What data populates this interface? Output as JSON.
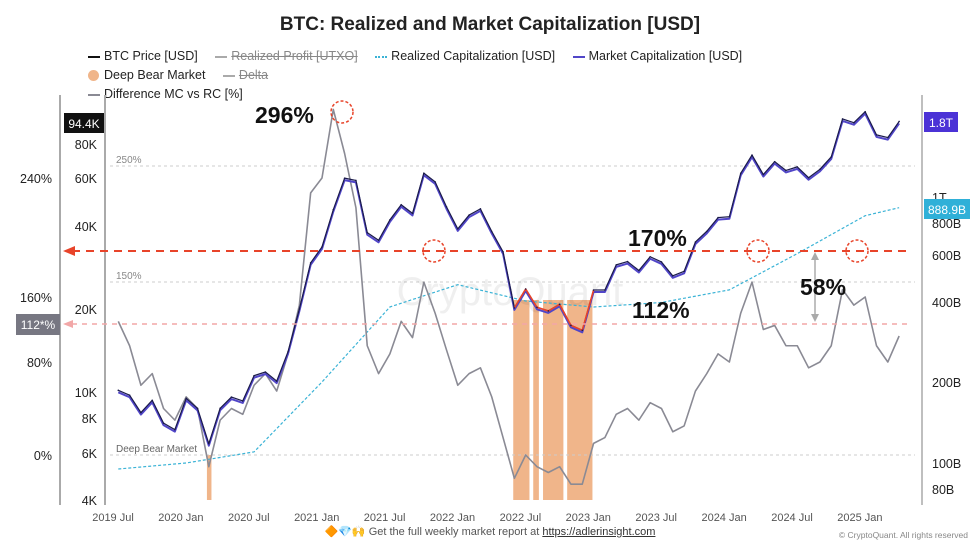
{
  "chart_data": {
    "type": "line",
    "title": "BTC: Realized and Market Capitalization [USD]",
    "legend": [
      {
        "label": "BTC Price [USD]",
        "color": "#111111",
        "style": "solid"
      },
      {
        "label": "Realized Profit [UTXO]",
        "color": "#999999",
        "style": "solid",
        "hidden": true
      },
      {
        "label": "Realized Capitalization [USD]",
        "color": "#3bb3d6",
        "style": "dotted"
      },
      {
        "label": "Market Capitalization [USD]",
        "color": "#5146c8",
        "style": "solid"
      },
      {
        "label": "Deep Bear Market",
        "color": "#f0b58a",
        "style": "dot"
      },
      {
        "label": "Delta",
        "color": "#999999",
        "style": "solid",
        "hidden": true
      },
      {
        "label": "Difference MC vs RC [%]",
        "color": "#8a8a94",
        "style": "solid"
      }
    ],
    "x_ticks": [
      "2019 Jul",
      "2020 Jan",
      "2020 Jul",
      "2021 Jan",
      "2021 Jul",
      "2022 Jan",
      "2022 Jul",
      "2023 Jan",
      "2023 Jul",
      "2024 Jan",
      "2024 Jul",
      "2025 Jan"
    ],
    "left_pct_ticks": [
      "240%",
      "160%",
      "80%",
      "0%"
    ],
    "price_ticks": [
      "80K",
      "60K",
      "40K",
      "20K",
      "10K",
      "8K",
      "6K",
      "4K"
    ],
    "right_ticks": [
      "1T",
      "800B",
      "600B",
      "400B",
      "200B",
      "100B",
      "80B"
    ],
    "price_scale": "log",
    "mcap_scale": "log",
    "price_badge": "94.4K",
    "pct_badge": "112*%",
    "mcap_badge": "1.8T",
    "rcap_badge": "888.9B",
    "ref_lines": [
      {
        "label": "250%"
      },
      {
        "label": "150%"
      },
      {
        "label": "Deep Bear Market"
      }
    ],
    "annotations": [
      "296%",
      "170%",
      "112%",
      "58%"
    ],
    "watermark": "CryptoQuant",
    "btc_price": [
      [
        "2019-07",
        10000
      ],
      [
        "2019-08",
        9600
      ],
      [
        "2019-09",
        8300
      ],
      [
        "2019-10",
        9200
      ],
      [
        "2019-11",
        7600
      ],
      [
        "2019-12",
        7200
      ],
      [
        "2020-01",
        9350
      ],
      [
        "2020-02",
        8600
      ],
      [
        "2020-03",
        6400
      ],
      [
        "2020-04",
        8600
      ],
      [
        "2020-05",
        9450
      ],
      [
        "2020-06",
        9150
      ],
      [
        "2020-07",
        11300
      ],
      [
        "2020-08",
        11650
      ],
      [
        "2020-09",
        10800
      ],
      [
        "2020-10",
        13800
      ],
      [
        "2020-11",
        19700
      ],
      [
        "2020-12",
        29000
      ],
      [
        "2021-01",
        33100
      ],
      [
        "2021-02",
        45200
      ],
      [
        "2021-03",
        58800
      ],
      [
        "2021-04",
        57700
      ],
      [
        "2021-05",
        37300
      ],
      [
        "2021-06",
        35000
      ],
      [
        "2021-07",
        41500
      ],
      [
        "2021-08",
        47100
      ],
      [
        "2021-09",
        43800
      ],
      [
        "2021-10",
        61300
      ],
      [
        "2021-11",
        57000
      ],
      [
        "2021-12",
        46300
      ],
      [
        "2022-01",
        38500
      ],
      [
        "2022-02",
        43200
      ],
      [
        "2022-03",
        45500
      ],
      [
        "2022-04",
        37700
      ],
      [
        "2022-05",
        31800
      ],
      [
        "2022-06",
        19900
      ],
      [
        "2022-07",
        23300
      ],
      [
        "2022-08",
        20000
      ],
      [
        "2022-09",
        19400
      ],
      [
        "2022-10",
        20500
      ],
      [
        "2022-11",
        17200
      ],
      [
        "2022-12",
        16500
      ],
      [
        "2023-01",
        23100
      ],
      [
        "2023-02",
        23100
      ],
      [
        "2023-03",
        28500
      ],
      [
        "2023-04",
        29300
      ],
      [
        "2023-05",
        27200
      ],
      [
        "2023-06",
        30500
      ],
      [
        "2023-07",
        29200
      ],
      [
        "2023-08",
        26000
      ],
      [
        "2023-09",
        27000
      ],
      [
        "2023-10",
        34500
      ],
      [
        "2023-11",
        37700
      ],
      [
        "2023-12",
        42300
      ],
      [
        "2024-01",
        42600
      ],
      [
        "2024-02",
        61200
      ],
      [
        "2024-03",
        71300
      ],
      [
        "2024-04",
        60600
      ],
      [
        "2024-05",
        67500
      ],
      [
        "2024-06",
        62700
      ],
      [
        "2024-07",
        64600
      ],
      [
        "2024-08",
        59000
      ],
      [
        "2024-09",
        63300
      ],
      [
        "2024-10",
        70200
      ],
      [
        "2024-11",
        96400
      ],
      [
        "2024-12",
        93400
      ],
      [
        "2025-01",
        102400
      ],
      [
        "2025-02",
        84400
      ],
      [
        "2025-03",
        82500
      ],
      [
        "2025-04",
        94400
      ]
    ],
    "realized_cap_B": [
      [
        "2019-07",
        95
      ],
      [
        "2020-01",
        100
      ],
      [
        "2020-07",
        110
      ],
      [
        "2021-01",
        200
      ],
      [
        "2021-07",
        380
      ],
      [
        "2022-01",
        460
      ],
      [
        "2022-07",
        400
      ],
      [
        "2023-01",
        380
      ],
      [
        "2023-07",
        395
      ],
      [
        "2024-01",
        440
      ],
      [
        "2024-07",
        600
      ],
      [
        "2025-01",
        830
      ],
      [
        "2025-04",
        889
      ]
    ],
    "difference_pct": [
      [
        "2019-07",
        130
      ],
      [
        "2019-08",
        100
      ],
      [
        "2019-09",
        60
      ],
      [
        "2019-10",
        70
      ],
      [
        "2019-11",
        40
      ],
      [
        "2019-12",
        30
      ],
      [
        "2020-01",
        50
      ],
      [
        "2020-02",
        40
      ],
      [
        "2020-03",
        -10
      ],
      [
        "2020-04",
        30
      ],
      [
        "2020-05",
        40
      ],
      [
        "2020-06",
        35
      ],
      [
        "2020-07",
        60
      ],
      [
        "2020-08",
        70
      ],
      [
        "2020-09",
        55
      ],
      [
        "2020-10",
        90
      ],
      [
        "2020-11",
        150
      ],
      [
        "2020-12",
        230
      ],
      [
        "2021-01",
        240
      ],
      [
        "2021-02",
        296
      ],
      [
        "2021-03",
        260
      ],
      [
        "2021-04",
        220
      ],
      [
        "2021-05",
        100
      ],
      [
        "2021-06",
        70
      ],
      [
        "2021-07",
        90
      ],
      [
        "2021-08",
        130
      ],
      [
        "2021-09",
        110
      ],
      [
        "2021-10",
        170
      ],
      [
        "2021-11",
        140
      ],
      [
        "2021-12",
        95
      ],
      [
        "2022-01",
        60
      ],
      [
        "2022-02",
        70
      ],
      [
        "2022-03",
        75
      ],
      [
        "2022-04",
        50
      ],
      [
        "2022-05",
        15
      ],
      [
        "2022-06",
        -20
      ],
      [
        "2022-07",
        0
      ],
      [
        "2022-08",
        -10
      ],
      [
        "2022-09",
        -15
      ],
      [
        "2022-10",
        -10
      ],
      [
        "2022-11",
        -25
      ],
      [
        "2022-12",
        -25
      ],
      [
        "2023-01",
        10
      ],
      [
        "2023-02",
        15
      ],
      [
        "2023-03",
        35
      ],
      [
        "2023-04",
        40
      ],
      [
        "2023-05",
        30
      ],
      [
        "2023-06",
        45
      ],
      [
        "2023-07",
        40
      ],
      [
        "2023-08",
        20
      ],
      [
        "2023-09",
        25
      ],
      [
        "2023-10",
        55
      ],
      [
        "2023-11",
        70
      ],
      [
        "2023-12",
        90
      ],
      [
        "2024-01",
        80
      ],
      [
        "2024-02",
        140
      ],
      [
        "2024-03",
        170
      ],
      [
        "2024-04",
        120
      ],
      [
        "2024-05",
        125
      ],
      [
        "2024-06",
        100
      ],
      [
        "2024-07",
        100
      ],
      [
        "2024-08",
        75
      ],
      [
        "2024-09",
        80
      ],
      [
        "2024-10",
        100
      ],
      [
        "2024-11",
        165
      ],
      [
        "2024-12",
        150
      ],
      [
        "2025-01",
        160
      ],
      [
        "2025-02",
        100
      ],
      [
        "2025-03",
        80
      ],
      [
        "2025-04",
        112
      ]
    ],
    "deep_bear_periods": [
      [
        "2020-03-10",
        "2020-03-22"
      ],
      [
        "2022-06-12",
        "2022-07-25"
      ],
      [
        "2022-08-05",
        "2022-08-20"
      ],
      [
        "2022-09-01",
        "2022-10-25"
      ],
      [
        "2022-11-05",
        "2023-01-12"
      ]
    ]
  },
  "footer": {
    "text": "Get the full weekly market report at ",
    "link": "https://adlerinsight.com",
    "copyright": "© CryptoQuant. All rights reserved"
  }
}
